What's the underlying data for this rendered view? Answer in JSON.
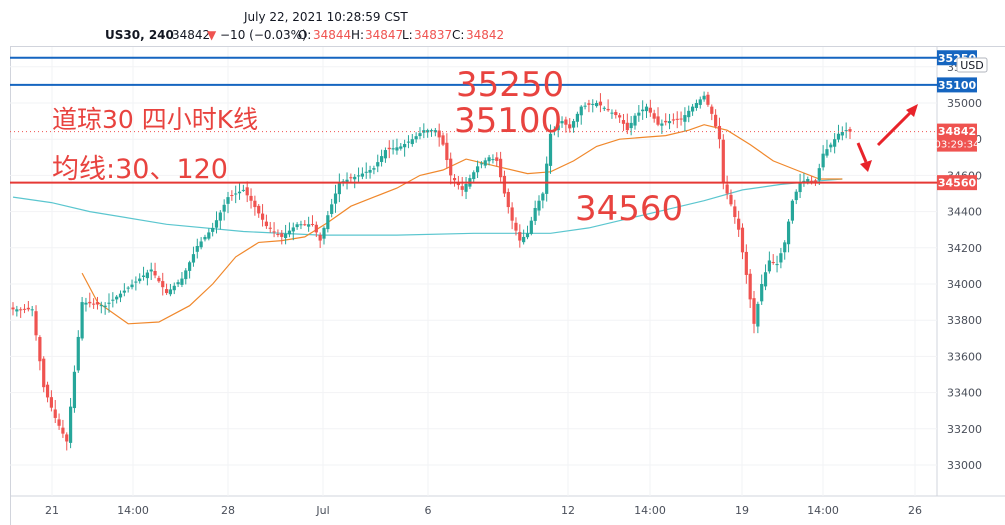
{
  "header": {
    "timestamp": "July 22, 2021 10:28:59 CST",
    "symbol": "US30, 240",
    "last": "34842",
    "change_arrow": "▼",
    "change": "−10 (−0.03%)",
    "o_label": "O:",
    "o_value": "34844",
    "h_label": "H:",
    "h_value": "34847",
    "l_label": "L:",
    "l_value": "34837",
    "c_label": "C:",
    "c_value": "34842"
  },
  "currency_button": "USD",
  "colors": {
    "up": "#26a69a",
    "down": "#ef5350",
    "ma30": "#f0882c",
    "ma120": "#5bc6cf",
    "blue_line": "#1565c0",
    "red_line": "#e53935",
    "annotation": "#e8433f"
  },
  "chart_data": {
    "type": "candlestick",
    "symbol": "US30",
    "timeframe": "240",
    "ylim": [
      32850,
      35500
    ],
    "yticks": [
      33000,
      33200,
      33400,
      33600,
      33800,
      34000,
      34200,
      34400,
      34600,
      34800,
      35000,
      35200
    ],
    "xlabels": [
      "21",
      "14:00",
      "28",
      "Jul",
      "6",
      "12",
      "14:00",
      "19",
      "14:00",
      "26"
    ],
    "axis_badges": [
      {
        "label": "35250",
        "kind": "blue"
      },
      {
        "label": "35100",
        "kind": "blue"
      },
      {
        "label": "34842",
        "kind": "red",
        "sub": "03:29:34"
      },
      {
        "label": "34560",
        "kind": "red"
      }
    ],
    "hlines": [
      {
        "value": 35250,
        "color": "#1565c0"
      },
      {
        "value": 35100,
        "color": "#1565c0"
      },
      {
        "value": 34560,
        "color": "#e53935"
      }
    ],
    "annotations": [
      "道琼30 四小时K线",
      "均线:30、120",
      "35250",
      "35100",
      "34560"
    ],
    "moving_averages": [
      "MA30",
      "MA120"
    ],
    "anchors": [
      [
        0,
        33860
      ],
      [
        2,
        33860
      ],
      [
        5,
        33860
      ],
      [
        8,
        33430
      ],
      [
        11,
        33260
      ],
      [
        14,
        33130
      ],
      [
        18,
        33900
      ],
      [
        24,
        33880
      ],
      [
        30,
        33980
      ],
      [
        36,
        34080
      ],
      [
        40,
        33950
      ],
      [
        44,
        34030
      ],
      [
        48,
        34210
      ],
      [
        52,
        34310
      ],
      [
        56,
        34480
      ],
      [
        60,
        34520
      ],
      [
        62,
        34460
      ],
      [
        66,
        34320
      ],
      [
        70,
        34260
      ],
      [
        74,
        34330
      ],
      [
        78,
        34330
      ],
      [
        80,
        34240
      ],
      [
        82,
        34380
      ],
      [
        85,
        34560
      ],
      [
        90,
        34600
      ],
      [
        94,
        34640
      ],
      [
        97,
        34740
      ],
      [
        101,
        34760
      ],
      [
        104,
        34800
      ],
      [
        107,
        34850
      ],
      [
        110,
        34850
      ],
      [
        112,
        34770
      ],
      [
        114,
        34600
      ],
      [
        117,
        34520
      ],
      [
        121,
        34650
      ],
      [
        124,
        34700
      ],
      [
        126,
        34680
      ],
      [
        128,
        34500
      ],
      [
        130,
        34350
      ],
      [
        132,
        34240
      ],
      [
        134,
        34280
      ],
      [
        136,
        34420
      ],
      [
        138,
        34500
      ],
      [
        140,
        34830
      ],
      [
        143,
        34900
      ],
      [
        145,
        34860
      ],
      [
        148,
        34980
      ],
      [
        152,
        35000
      ],
      [
        155,
        34960
      ],
      [
        158,
        34920
      ],
      [
        160,
        34850
      ],
      [
        162,
        34930
      ],
      [
        165,
        34980
      ],
      [
        168,
        34880
      ],
      [
        171,
        34900
      ],
      [
        174,
        34910
      ],
      [
        177,
        34980
      ],
      [
        180,
        35040
      ],
      [
        182,
        34940
      ],
      [
        184,
        34800
      ],
      [
        185,
        34560
      ],
      [
        187,
        34440
      ],
      [
        189,
        34300
      ],
      [
        191,
        34050
      ],
      [
        193,
        33780
      ],
      [
        195,
        34000
      ],
      [
        197,
        34130
      ],
      [
        199,
        34110
      ],
      [
        201,
        34230
      ],
      [
        203,
        34460
      ],
      [
        205,
        34560
      ],
      [
        207,
        34580
      ],
      [
        209,
        34560
      ],
      [
        211,
        34720
      ],
      [
        213,
        34770
      ],
      [
        215,
        34830
      ],
      [
        217,
        34850
      ],
      [
        218,
        34842
      ]
    ],
    "ma30_points": [
      [
        18,
        34060
      ],
      [
        22,
        33900
      ],
      [
        30,
        33780
      ],
      [
        38,
        33790
      ],
      [
        46,
        33880
      ],
      [
        52,
        34000
      ],
      [
        58,
        34150
      ],
      [
        64,
        34230
      ],
      [
        70,
        34240
      ],
      [
        76,
        34260
      ],
      [
        82,
        34340
      ],
      [
        88,
        34430
      ],
      [
        94,
        34480
      ],
      [
        100,
        34530
      ],
      [
        106,
        34600
      ],
      [
        112,
        34630
      ],
      [
        118,
        34690
      ],
      [
        122,
        34670
      ],
      [
        128,
        34640
      ],
      [
        134,
        34610
      ],
      [
        140,
        34620
      ],
      [
        146,
        34680
      ],
      [
        152,
        34760
      ],
      [
        158,
        34800
      ],
      [
        164,
        34810
      ],
      [
        170,
        34820
      ],
      [
        176,
        34850
      ],
      [
        180,
        34880
      ],
      [
        186,
        34850
      ],
      [
        192,
        34770
      ],
      [
        198,
        34680
      ],
      [
        204,
        34630
      ],
      [
        210,
        34580
      ],
      [
        216,
        34580
      ]
    ],
    "ma120_points": [
      [
        0,
        34480
      ],
      [
        10,
        34450
      ],
      [
        20,
        34400
      ],
      [
        40,
        34330
      ],
      [
        60,
        34290
      ],
      [
        80,
        34270
      ],
      [
        100,
        34270
      ],
      [
        120,
        34280
      ],
      [
        140,
        34280
      ],
      [
        150,
        34310
      ],
      [
        160,
        34360
      ],
      [
        170,
        34410
      ],
      [
        180,
        34460
      ],
      [
        190,
        34520
      ],
      [
        200,
        34550
      ],
      [
        210,
        34570
      ],
      [
        216,
        34580
      ]
    ]
  }
}
